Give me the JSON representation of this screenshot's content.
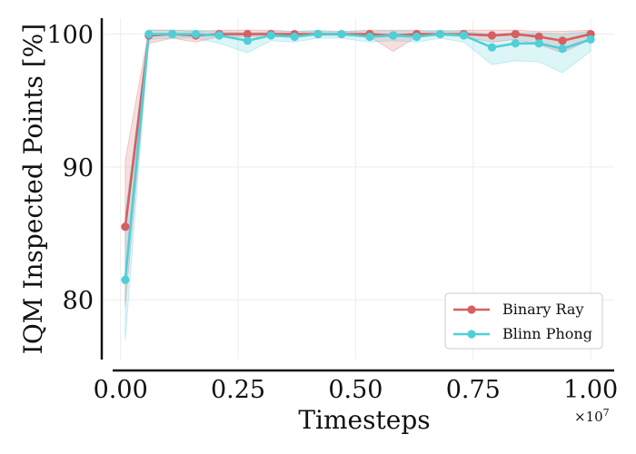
{
  "chart_data": {
    "type": "line",
    "title": "",
    "xlabel": "Timesteps",
    "ylabel": "IQM Inspected Points [%]",
    "x_scale_label": "×10",
    "x_scale_exp": "7",
    "xlim": [
      -0.04,
      1.05
    ],
    "ylim": [
      75.5,
      101.2
    ],
    "xticks": [
      0.0,
      0.25,
      0.5,
      0.75,
      1.0
    ],
    "xtick_labels": [
      "0.00",
      "0.25",
      "0.50",
      "0.75",
      "1.00"
    ],
    "yticks": [
      80,
      90,
      100
    ],
    "ytick_labels": [
      "80",
      "90",
      "100"
    ],
    "grid": true,
    "legend_position": "lower-right",
    "x": [
      0.01,
      0.06,
      0.11,
      0.16,
      0.21,
      0.27,
      0.32,
      0.37,
      0.42,
      0.47,
      0.53,
      0.58,
      0.63,
      0.68,
      0.73,
      0.79,
      0.84,
      0.89,
      0.94,
      1.0
    ],
    "series": [
      {
        "name": "Binary Ray",
        "color": "#d65f5f",
        "values": [
          85.5,
          99.9,
          100.0,
          99.9,
          100.0,
          100.0,
          100.0,
          100.0,
          100.0,
          100.0,
          100.0,
          99.9,
          100.0,
          100.0,
          100.0,
          99.9,
          100.0,
          99.8,
          99.5,
          100.0
        ],
        "lower": [
          79.5,
          99.3,
          99.7,
          99.4,
          99.8,
          99.8,
          99.8,
          99.9,
          99.9,
          99.9,
          99.8,
          98.7,
          99.8,
          99.9,
          99.8,
          99.4,
          99.6,
          99.2,
          98.6,
          99.6
        ],
        "upper": [
          90.5,
          100.3,
          100.3,
          100.2,
          100.3,
          100.3,
          100.3,
          100.2,
          100.2,
          100.2,
          100.3,
          100.3,
          100.3,
          100.2,
          100.3,
          100.3,
          100.3,
          100.2,
          100.2,
          100.3
        ]
      },
      {
        "name": "Blinn Phong",
        "color": "#4fcfd8",
        "values": [
          81.5,
          100.0,
          100.0,
          100.0,
          99.9,
          99.5,
          99.9,
          99.8,
          100.0,
          100.0,
          99.8,
          99.9,
          99.8,
          100.0,
          99.9,
          99.0,
          99.3,
          99.3,
          98.9,
          99.6
        ],
        "lower": [
          77.0,
          99.6,
          99.7,
          99.7,
          99.3,
          98.6,
          99.5,
          99.4,
          99.7,
          99.7,
          99.4,
          99.5,
          99.4,
          99.7,
          99.4,
          97.7,
          98.0,
          97.9,
          97.1,
          98.7
        ],
        "upper": [
          86.5,
          100.3,
          100.3,
          100.3,
          100.2,
          100.1,
          100.2,
          100.2,
          100.3,
          100.2,
          100.2,
          100.2,
          100.2,
          100.3,
          100.2,
          100.0,
          100.1,
          100.1,
          100.0,
          100.2
        ]
      }
    ]
  }
}
